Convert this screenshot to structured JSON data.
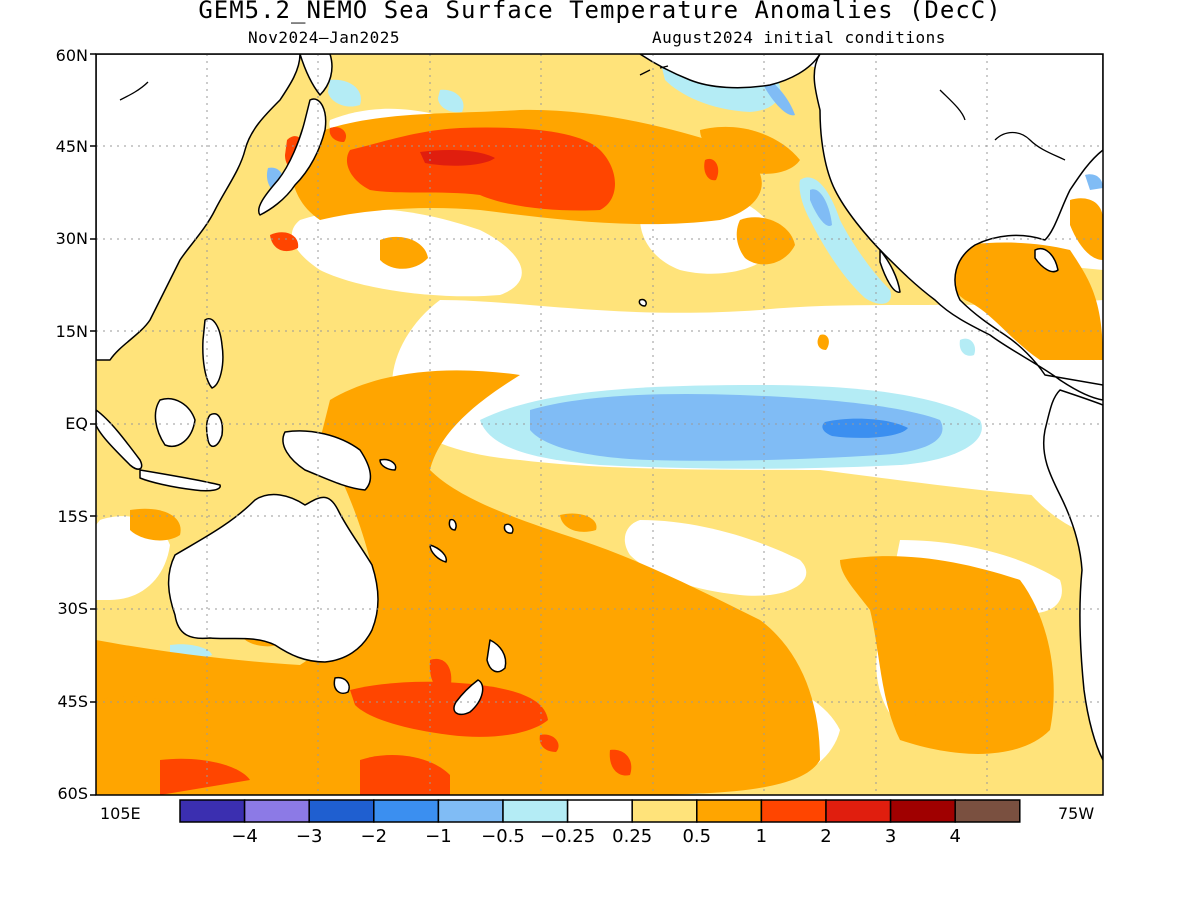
{
  "title": "GEM5.2_NEMO Sea Surface Temperature Anomalies (DecC)",
  "period": "Nov2024–Jan2025",
  "initial_conditions": "August2024 initial conditions",
  "lat_labels": [
    "60N",
    "45N",
    "30N",
    "15N",
    "EQ",
    "15S",
    "30S",
    "45S",
    "60S"
  ],
  "lon_labels": {
    "left": "105E",
    "right": "75W"
  },
  "colorbar": {
    "colors": [
      "#3b2fb0",
      "#8c7ae6",
      "#1f5fd0",
      "#3b8ff0",
      "#80bcf5",
      "#b4ecf5",
      "#ffffff",
      "#ffe37a",
      "#ffa500",
      "#ff4500",
      "#e01e0e",
      "#a00000",
      "#7a5040"
    ],
    "labels": [
      "−4",
      "−3",
      "−2",
      "−1",
      "−0.5",
      "−0.25",
      "0.25",
      "0.5",
      "1",
      "2",
      "3",
      "4"
    ]
  },
  "legend_colors": {
    "land": "#ffffff",
    "coast": "#000000",
    "pale_yellow": "#ffe37a",
    "orange": "#ffa500",
    "red_orange": "#ff4500",
    "red": "#e01e0e",
    "light_cyan": "#b4ecf5",
    "light_blue": "#80bcf5",
    "mid_blue": "#3b8ff0"
  }
}
